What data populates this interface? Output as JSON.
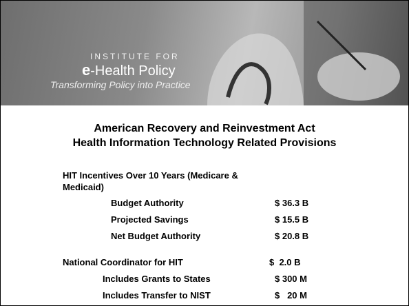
{
  "header": {
    "institute": "INSTITUTE FOR",
    "brand_prefix": "e",
    "brand": "-Health Policy",
    "tagline": "Transforming Policy into Practice"
  },
  "title": [
    "American Recovery and Reinvestment Act",
    "Health Information Technology Related Provisions"
  ],
  "sections": [
    {
      "heading": [
        "HIT Incentives Over 10 Years (Medicare &",
        "Medicaid)"
      ],
      "items": [
        {
          "label": "Budget Authority",
          "amount": "$ 36.3 B"
        },
        {
          "label": "Projected Savings",
          "amount": "$ 15.5 B"
        },
        {
          "label": "Net Budget Authority",
          "amount": "$ 20.8 B"
        }
      ]
    },
    {
      "heading": [
        "National Coordinator for HIT"
      ],
      "amount": "$  2.0 B",
      "items": [
        {
          "label": "Includes Grants to States",
          "amount": "$ 300 M"
        },
        {
          "label": "Includes Transfer to NIST",
          "amount": "$   20 M"
        }
      ]
    }
  ]
}
